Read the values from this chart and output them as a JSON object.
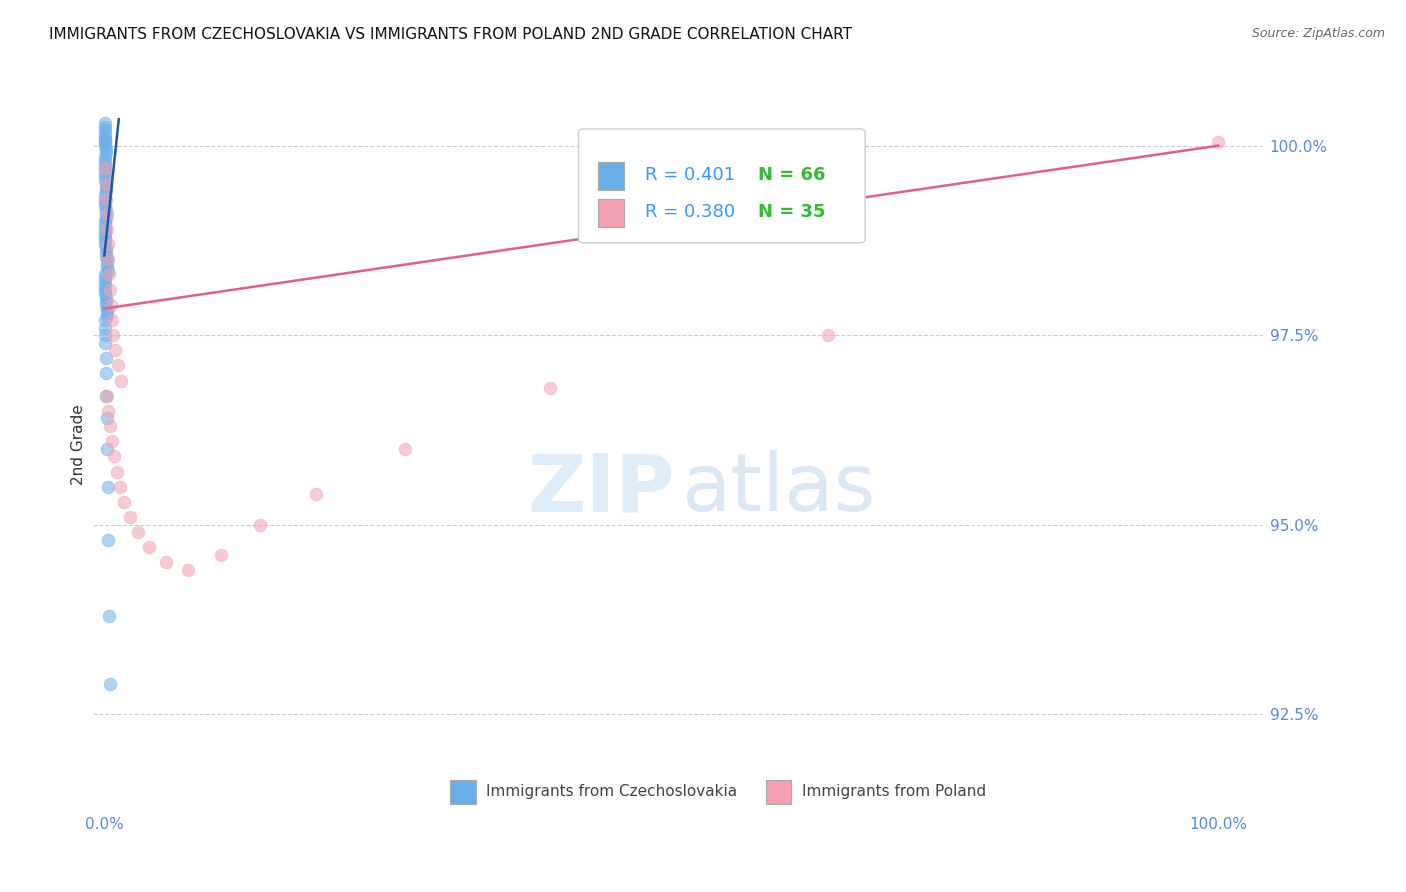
{
  "title": "IMMIGRANTS FROM CZECHOSLOVAKIA VS IMMIGRANTS FROM POLAND 2ND GRADE CORRELATION CHART",
  "source": "Source: ZipAtlas.com",
  "ylabel": "2nd Grade",
  "y_tick_values": [
    92.5,
    95.0,
    97.5,
    100.0
  ],
  "x_range": [
    0.0,
    100.0
  ],
  "y_min": 91.2,
  "y_max": 100.9,
  "legend_blue_r": "R = 0.401",
  "legend_blue_n": "N = 66",
  "legend_pink_r": "R = 0.380",
  "legend_pink_n": "N = 35",
  "legend_blue_label": "Immigrants from Czechoslovakia",
  "legend_pink_label": "Immigrants from Poland",
  "blue_color": "#6aaee8",
  "pink_color": "#f4a0b0",
  "blue_line_color": "#2255aa",
  "pink_line_color": "#e06080",
  "blue_scatter_x": [
    0.05,
    0.08,
    0.1,
    0.05,
    0.03,
    0.07,
    0.1,
    0.04,
    0.12,
    0.15,
    0.08,
    0.06,
    0.1,
    0.04,
    0.06,
    0.08,
    0.1,
    0.12,
    0.15,
    0.18,
    0.08,
    0.06,
    0.04,
    0.1,
    0.12,
    0.14,
    0.18,
    0.04,
    0.07,
    0.05,
    0.06,
    0.08,
    0.09,
    0.1,
    0.12,
    0.15,
    0.18,
    0.2,
    0.25,
    0.28,
    0.32,
    0.04,
    0.05,
    0.06,
    0.07,
    0.08,
    0.1,
    0.11,
    0.13,
    0.16,
    0.2,
    0.23,
    0.28,
    0.04,
    0.05,
    0.06,
    0.09,
    0.15,
    0.12,
    0.17,
    0.22,
    0.26,
    0.3,
    0.35,
    0.42,
    0.5
  ],
  "blue_scatter_y": [
    100.3,
    100.25,
    100.2,
    100.15,
    100.1,
    100.08,
    100.05,
    100.0,
    99.95,
    99.9,
    99.85,
    99.8,
    99.75,
    99.7,
    99.65,
    99.6,
    99.55,
    99.5,
    99.45,
    99.4,
    99.35,
    99.3,
    99.25,
    99.2,
    99.15,
    99.1,
    99.05,
    99.0,
    98.95,
    98.9,
    98.85,
    98.8,
    98.75,
    98.7,
    98.65,
    98.6,
    98.55,
    98.5,
    98.45,
    98.4,
    98.35,
    98.3,
    98.25,
    98.2,
    98.15,
    98.1,
    98.05,
    98.0,
    97.95,
    97.9,
    97.85,
    97.8,
    97.75,
    97.7,
    97.6,
    97.5,
    97.4,
    97.2,
    97.0,
    96.7,
    96.4,
    96.0,
    95.5,
    94.8,
    93.8,
    92.9
  ],
  "pink_scatter_x": [
    0.08,
    0.12,
    0.15,
    0.2,
    0.25,
    0.3,
    0.35,
    0.4,
    0.5,
    0.6,
    0.7,
    0.8,
    1.0,
    1.2,
    1.5,
    0.2,
    0.35,
    0.5,
    0.7,
    0.9,
    1.1,
    1.4,
    1.8,
    2.3,
    3.0,
    4.0,
    5.5,
    7.5,
    10.5,
    14.0,
    19.0,
    27.0,
    40.0,
    65.0,
    100.0
  ],
  "pink_scatter_y": [
    99.7,
    99.5,
    99.3,
    99.1,
    98.9,
    98.7,
    98.5,
    98.3,
    98.1,
    97.9,
    97.7,
    97.5,
    97.3,
    97.1,
    96.9,
    96.7,
    96.5,
    96.3,
    96.1,
    95.9,
    95.7,
    95.5,
    95.3,
    95.1,
    94.9,
    94.7,
    94.5,
    94.4,
    94.6,
    95.0,
    95.4,
    96.0,
    96.8,
    97.5,
    100.05
  ],
  "blue_line_x0": 0.0,
  "blue_line_y0": 98.55,
  "blue_line_x1": 1.3,
  "blue_line_y1": 100.35,
  "pink_line_x0": 0.0,
  "pink_line_y0": 97.85,
  "pink_line_x1": 100.0,
  "pink_line_y1": 100.0,
  "title_fontsize": 11,
  "axis_label_color": "#5588dd",
  "grid_color": "#cccccc",
  "background_color": "#ffffff"
}
